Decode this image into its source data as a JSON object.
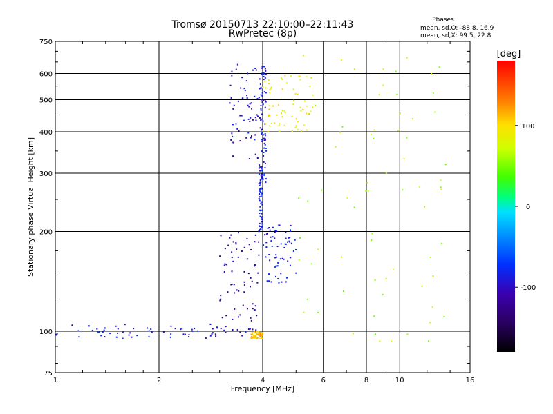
{
  "chart_data": {
    "type": "scatter",
    "title": "Tromsø 20150713 22:10:00–22:11:43",
    "subtitle": "RwPretec (8p)",
    "xlabel": "Frequency [MHz]",
    "ylabel": "Stationary phase Virtual Height [km]",
    "x_scale": "log",
    "y_scale": "log",
    "xlim": [
      1,
      16
    ],
    "ylim": [
      75,
      750
    ],
    "x_ticks": [
      1,
      2,
      4,
      6,
      8,
      10,
      16
    ],
    "y_ticks": [
      75,
      100,
      200,
      300,
      400,
      500,
      600,
      750
    ],
    "grid": true,
    "phases_block": {
      "title": "Phases",
      "line_o": "mean, sd,O: -88.8, 16.9",
      "line_x": "mean, sd,X:  99.5, 22.8"
    },
    "colorbar": {
      "label": "[deg]",
      "min": -180,
      "max": 180,
      "ticks": [
        100,
        0,
        -100
      ]
    },
    "point_groups": [
      {
        "region": "E-layer trace",
        "x_range": [
          1.0,
          3.7
        ],
        "y_range": [
          95,
          105
        ],
        "phase_deg": -90
      },
      {
        "region": "sporadic near 4 MHz",
        "x_range": [
          3.7,
          4.0
        ],
        "y_range": [
          95,
          100
        ],
        "phase_deg": 110
      },
      {
        "region": "F1 rising trace",
        "x_range": [
          3.0,
          3.9
        ],
        "y_range": [
          100,
          200
        ],
        "phase_deg": -115
      },
      {
        "region": "F1 cusp",
        "x_range": [
          3.9,
          4.0
        ],
        "y_range": [
          200,
          330
        ],
        "phase_deg": -80
      },
      {
        "region": "F2 trace",
        "x_range": [
          3.2,
          4.0
        ],
        "y_range": [
          330,
          640
        ],
        "phase_deg": -95
      },
      {
        "region": "F2 cusp",
        "x_range": [
          3.95,
          4.1
        ],
        "y_range": [
          280,
          650
        ],
        "phase_deg": -85
      },
      {
        "region": "X-trace F1",
        "x_range": [
          4.0,
          5.0
        ],
        "y_range": [
          140,
          210
        ],
        "phase_deg": -85
      },
      {
        "region": "X-trace upper",
        "x_range": [
          4.0,
          5.6
        ],
        "y_range": [
          400,
          600
        ],
        "phase_deg": 90
      },
      {
        "region": "scattered echoes",
        "x_range": [
          5.0,
          14.0
        ],
        "y_range": [
          90,
          700
        ],
        "phase_deg": 60
      }
    ]
  }
}
